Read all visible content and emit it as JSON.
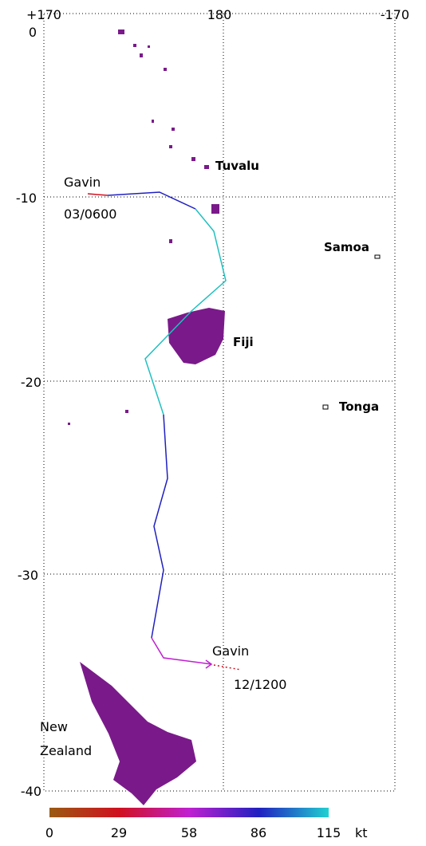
{
  "map": {
    "lon_ticks": [
      "+170",
      "180",
      "-170"
    ],
    "lat_ticks": [
      "0",
      "-10",
      "-20",
      "-30",
      "-40"
    ],
    "places": [
      "Tuvalu",
      "Samoa",
      "Fiji",
      "Tonga"
    ],
    "region": [
      "New",
      "Zealand"
    ],
    "storm_start": {
      "name": "Gavin",
      "time": "03/0600"
    },
    "storm_end": {
      "name": "Gavin",
      "time": "12/1200"
    },
    "colorbar": {
      "labels": [
        "0",
        "29",
        "58",
        "86",
        "115"
      ],
      "unit": "kt"
    }
  }
}
